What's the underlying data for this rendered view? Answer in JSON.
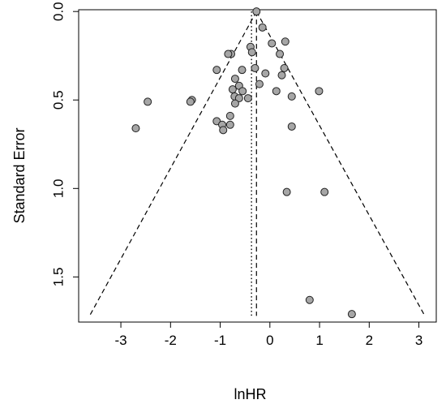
{
  "chart_data": {
    "type": "scatter",
    "title": "",
    "xlabel": "lnHR",
    "ylabel": "Standard Error",
    "xlim": [
      -3.85,
      3.35
    ],
    "ylim_reversed": [
      1.755,
      -0.01
    ],
    "x_ticks": [
      -3,
      -2,
      -1,
      0,
      1,
      2,
      3
    ],
    "x_tick_labels": [
      "-3",
      "-2",
      "-1",
      "0",
      "1",
      "2",
      "3"
    ],
    "y_ticks": [
      0.0,
      0.5,
      1.0,
      1.5
    ],
    "y_tick_labels": [
      "0.0",
      "0.5",
      "1.0",
      "1.5"
    ],
    "grid": false,
    "point_color": "#a6a6a6",
    "point_stroke": "#222222",
    "pooled_estimate": -0.27,
    "reference_line_x": -0.37,
    "funnel_lines": [
      {
        "from": [
          -0.27,
          0.0
        ],
        "to": [
          -3.63,
          1.72
        ]
      },
      {
        "from": [
          -0.27,
          0.0
        ],
        "to": [
          3.12,
          1.72
        ]
      }
    ],
    "points": [
      {
        "x": -0.27,
        "y": 0.0
      },
      {
        "x": -0.15,
        "y": 0.09
      },
      {
        "x": -0.39,
        "y": 0.2
      },
      {
        "x": 0.31,
        "y": 0.17
      },
      {
        "x": 0.04,
        "y": 0.18
      },
      {
        "x": -0.36,
        "y": 0.23
      },
      {
        "x": -0.78,
        "y": 0.24
      },
      {
        "x": 0.2,
        "y": 0.24
      },
      {
        "x": -0.84,
        "y": 0.24
      },
      {
        "x": 0.29,
        "y": 0.32
      },
      {
        "x": -0.56,
        "y": 0.33
      },
      {
        "x": -0.3,
        "y": 0.32
      },
      {
        "x": -1.07,
        "y": 0.33
      },
      {
        "x": -0.09,
        "y": 0.35
      },
      {
        "x": 0.24,
        "y": 0.36
      },
      {
        "x": -0.7,
        "y": 0.38
      },
      {
        "x": -0.21,
        "y": 0.41
      },
      {
        "x": -0.62,
        "y": 0.42
      },
      {
        "x": 0.13,
        "y": 0.45
      },
      {
        "x": 0.99,
        "y": 0.45
      },
      {
        "x": -0.75,
        "y": 0.44
      },
      {
        "x": -0.55,
        "y": 0.45
      },
      {
        "x": -0.71,
        "y": 0.48
      },
      {
        "x": -0.62,
        "y": 0.49
      },
      {
        "x": 0.44,
        "y": 0.48
      },
      {
        "x": -0.44,
        "y": 0.49
      },
      {
        "x": -1.57,
        "y": 0.5
      },
      {
        "x": -2.46,
        "y": 0.51
      },
      {
        "x": -1.6,
        "y": 0.51
      },
      {
        "x": -0.7,
        "y": 0.52
      },
      {
        "x": -0.8,
        "y": 0.59
      },
      {
        "x": -1.07,
        "y": 0.62
      },
      {
        "x": -0.96,
        "y": 0.64
      },
      {
        "x": -0.8,
        "y": 0.64
      },
      {
        "x": 0.44,
        "y": 0.65
      },
      {
        "x": -2.7,
        "y": 0.66
      },
      {
        "x": -0.94,
        "y": 0.67
      },
      {
        "x": 0.34,
        "y": 1.02
      },
      {
        "x": 1.1,
        "y": 1.02
      },
      {
        "x": 0.8,
        "y": 1.63
      },
      {
        "x": 1.65,
        "y": 1.71
      }
    ]
  }
}
